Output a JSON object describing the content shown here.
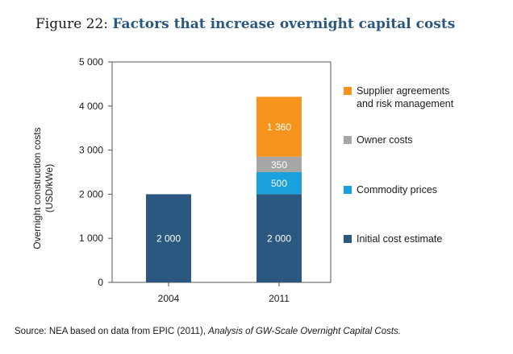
{
  "figure": {
    "label": "Figure 22:",
    "title": "Factors that increase overnight capital costs"
  },
  "source": {
    "prefix": "Source: NEA based on data from EPIC (2011),",
    "title": "Analysis of GW-Scale Overnight Capital Costs."
  },
  "colors": {
    "initial": "#2a5880",
    "commodity": "#1aa0dc",
    "owner": "#a6a6a6",
    "supplier": "#f7941d"
  },
  "chart_data": {
    "type": "bar",
    "stacked": true,
    "categories": [
      "2004",
      "2011"
    ],
    "ylabel": [
      "Overnight construction costs",
      "(USD/kWe)"
    ],
    "ylim": [
      0,
      5000
    ],
    "yticks": [
      0,
      1000,
      2000,
      3000,
      4000,
      5000
    ],
    "ytick_labels": [
      "0",
      "1 000",
      "2 000",
      "3 000",
      "4 000",
      "5 000"
    ],
    "legend_position": "right",
    "grid": false,
    "series": [
      {
        "name": "Initial cost estimate",
        "color": "#2a5880",
        "values": [
          2000,
          2000
        ],
        "labels": [
          "2 000",
          "2 000"
        ]
      },
      {
        "name": "Commodity prices",
        "color": "#1aa0dc",
        "values": [
          0,
          500
        ],
        "labels": [
          "",
          "500"
        ]
      },
      {
        "name": "Owner costs",
        "color": "#a6a6a6",
        "values": [
          0,
          350
        ],
        "labels": [
          "",
          "350"
        ]
      },
      {
        "name": "Supplier agreements and risk management",
        "color": "#f7941d",
        "values": [
          0,
          1360
        ],
        "labels": [
          "",
          "1 360"
        ]
      }
    ],
    "legend": [
      {
        "lines": [
          "Supplier agreements",
          "and risk management"
        ],
        "color": "#f7941d"
      },
      {
        "lines": [
          "Owner costs"
        ],
        "color": "#a6a6a6"
      },
      {
        "lines": [
          "Commodity prices"
        ],
        "color": "#1aa0dc"
      },
      {
        "lines": [
          "Initial cost estimate"
        ],
        "color": "#2a5880"
      }
    ]
  }
}
